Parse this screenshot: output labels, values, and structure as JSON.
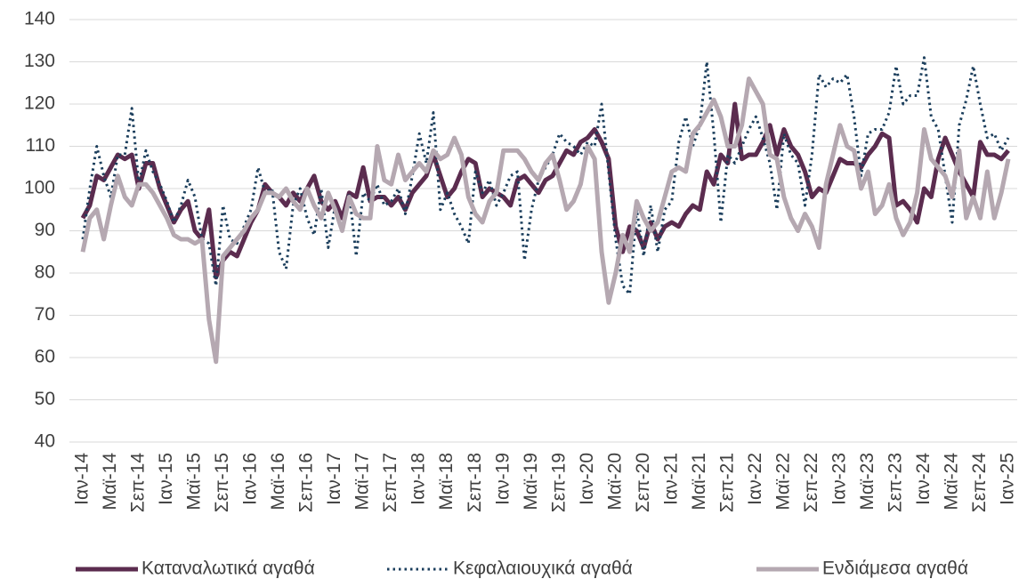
{
  "chart_data": {
    "type": "line",
    "categories": [
      "Ιαν-14",
      null,
      null,
      null,
      "Μαϊ-14",
      null,
      null,
      null,
      "Σεπ-14",
      null,
      null,
      null,
      "Ιαν-15",
      null,
      null,
      null,
      "Μαϊ-15",
      null,
      null,
      null,
      "Σεπ-15",
      null,
      null,
      null,
      "Ιαν-16",
      null,
      null,
      null,
      "Μαϊ-16",
      null,
      null,
      null,
      "Σεπ-16",
      null,
      null,
      null,
      "Ιαν-17",
      null,
      null,
      null,
      "Μαϊ-17",
      null,
      null,
      null,
      "Σεπ-17",
      null,
      null,
      null,
      "Ιαν-18",
      null,
      null,
      null,
      "Μαϊ-18",
      null,
      null,
      null,
      "Σεπ-18",
      null,
      null,
      null,
      "Ιαν-19",
      null,
      null,
      null,
      "Μαϊ-19",
      null,
      null,
      null,
      "Σεπ-19",
      null,
      null,
      null,
      "Ιαν-20",
      null,
      null,
      null,
      "Μαϊ-20",
      null,
      null,
      null,
      "Σεπ-20",
      null,
      null,
      null,
      "Ιαν-21",
      null,
      null,
      null,
      "Μαϊ-21",
      null,
      null,
      null,
      "Σεπ-21",
      null,
      null,
      null,
      "Ιαν-22",
      null,
      null,
      null,
      "Μαϊ-22",
      null,
      null,
      null,
      "Σεπ-22",
      null,
      null,
      null,
      "Ιαν-23",
      null,
      null,
      null,
      "Μαϊ-23",
      null,
      null,
      null,
      "Σεπ-23",
      null,
      null,
      null,
      "Ιαν-24",
      null,
      null,
      null,
      "Μαϊ-24",
      null,
      null,
      null,
      "Σεπ-24",
      null,
      null,
      null,
      "Ιαν-25"
    ],
    "series": [
      {
        "name": "Καταναλωτικά αγαθά",
        "color": "#5b2c4f",
        "line_style": "solid",
        "values": [
          93,
          96,
          103,
          102,
          105,
          108,
          107,
          108,
          100,
          106,
          106,
          100,
          96,
          92,
          95,
          97,
          90,
          88,
          95,
          79,
          83,
          85,
          84,
          88,
          92,
          95,
          101,
          99,
          98,
          96,
          99,
          97,
          100,
          103,
          97,
          95,
          97,
          93,
          99,
          98,
          105,
          97,
          98,
          98,
          96,
          98,
          95,
          99,
          101,
          103,
          108,
          103,
          98,
          100,
          104,
          107,
          106,
          98,
          100,
          99,
          98,
          96,
          102,
          103,
          101,
          99,
          102,
          103,
          106,
          109,
          108,
          111,
          112,
          114,
          111,
          107,
          91,
          85,
          91,
          90,
          86,
          92,
          88,
          91,
          92,
          91,
          94,
          96,
          95,
          104,
          101,
          108,
          106,
          120,
          107,
          108,
          108,
          111,
          115,
          108,
          114,
          110,
          108,
          104,
          98,
          100,
          99,
          103,
          107,
          106,
          106,
          105,
          108,
          110,
          113,
          112,
          96,
          97,
          95,
          92,
          100,
          98,
          107,
          112,
          108,
          104,
          101,
          98,
          111,
          108,
          108,
          107,
          109
        ]
      },
      {
        "name": "Κεφαλαιουχικά αγαθά",
        "color": "#1b3e5c",
        "line_style": "dotted",
        "values": [
          88,
          100,
          110,
          103,
          98,
          108,
          108,
          119,
          101,
          109,
          104,
          101,
          97,
          92,
          96,
          102,
          98,
          88,
          87,
          77,
          96,
          88,
          87,
          91,
          95,
          105,
          99,
          100,
          85,
          81,
          96,
          100,
          93,
          89,
          100,
          86,
          96,
          90,
          99,
          84,
          99,
          97,
          101,
          96,
          97,
          100,
          94,
          103,
          113,
          106,
          118,
          95,
          99,
          94,
          91,
          87,
          104,
          99,
          102,
          96,
          99,
          103,
          104,
          83,
          95,
          102,
          105,
          108,
          113,
          111,
          110,
          108,
          111,
          110,
          120,
          104,
          88,
          77,
          75,
          95,
          84,
          96,
          85,
          95,
          97,
          111,
          117,
          110,
          115,
          130,
          113,
          92,
          108,
          106,
          110,
          114,
          117,
          112,
          106,
          95,
          113,
          108,
          106,
          96,
          108,
          127,
          124,
          126,
          125,
          127,
          117,
          103,
          113,
          114,
          114,
          118,
          129,
          120,
          122,
          122,
          131,
          117,
          114,
          103,
          92,
          115,
          121,
          129,
          120,
          112,
          113,
          109,
          112
        ]
      },
      {
        "name": "Ενδιάμεσα αγαθά",
        "color": "#b5a8b1",
        "line_style": "solid",
        "values": [
          85,
          93,
          95,
          88,
          96,
          103,
          98,
          96,
          101,
          101,
          99,
          96,
          93,
          89,
          88,
          88,
          87,
          88,
          69,
          59,
          84,
          86,
          88,
          90,
          93,
          95,
          99,
          99,
          98,
          100,
          97,
          95,
          100,
          96,
          93,
          99,
          95,
          90,
          98,
          94,
          93,
          93,
          110,
          102,
          101,
          108,
          102,
          104,
          106,
          104,
          109,
          107,
          108,
          112,
          108,
          98,
          94,
          92,
          97,
          99,
          109,
          109,
          109,
          107,
          104,
          102,
          106,
          108,
          102,
          95,
          97,
          101,
          110,
          107,
          85,
          73,
          80,
          89,
          85,
          97,
          93,
          90,
          92,
          98,
          104,
          105,
          104,
          113,
          115,
          118,
          121,
          117,
          110,
          110,
          115,
          126,
          123,
          120,
          108,
          107,
          98,
          93,
          90,
          94,
          91,
          86,
          101,
          108,
          115,
          110,
          109,
          100,
          104,
          94,
          96,
          101,
          93,
          89,
          92,
          99,
          114,
          107,
          105,
          103,
          98,
          109,
          93,
          98,
          93,
          104,
          93,
          99,
          107
        ]
      }
    ],
    "ylim": [
      40,
      140
    ],
    "yticks": [
      40,
      50,
      60,
      70,
      80,
      90,
      100,
      110,
      120,
      130,
      140
    ],
    "grid": true,
    "legend": "bottom"
  }
}
